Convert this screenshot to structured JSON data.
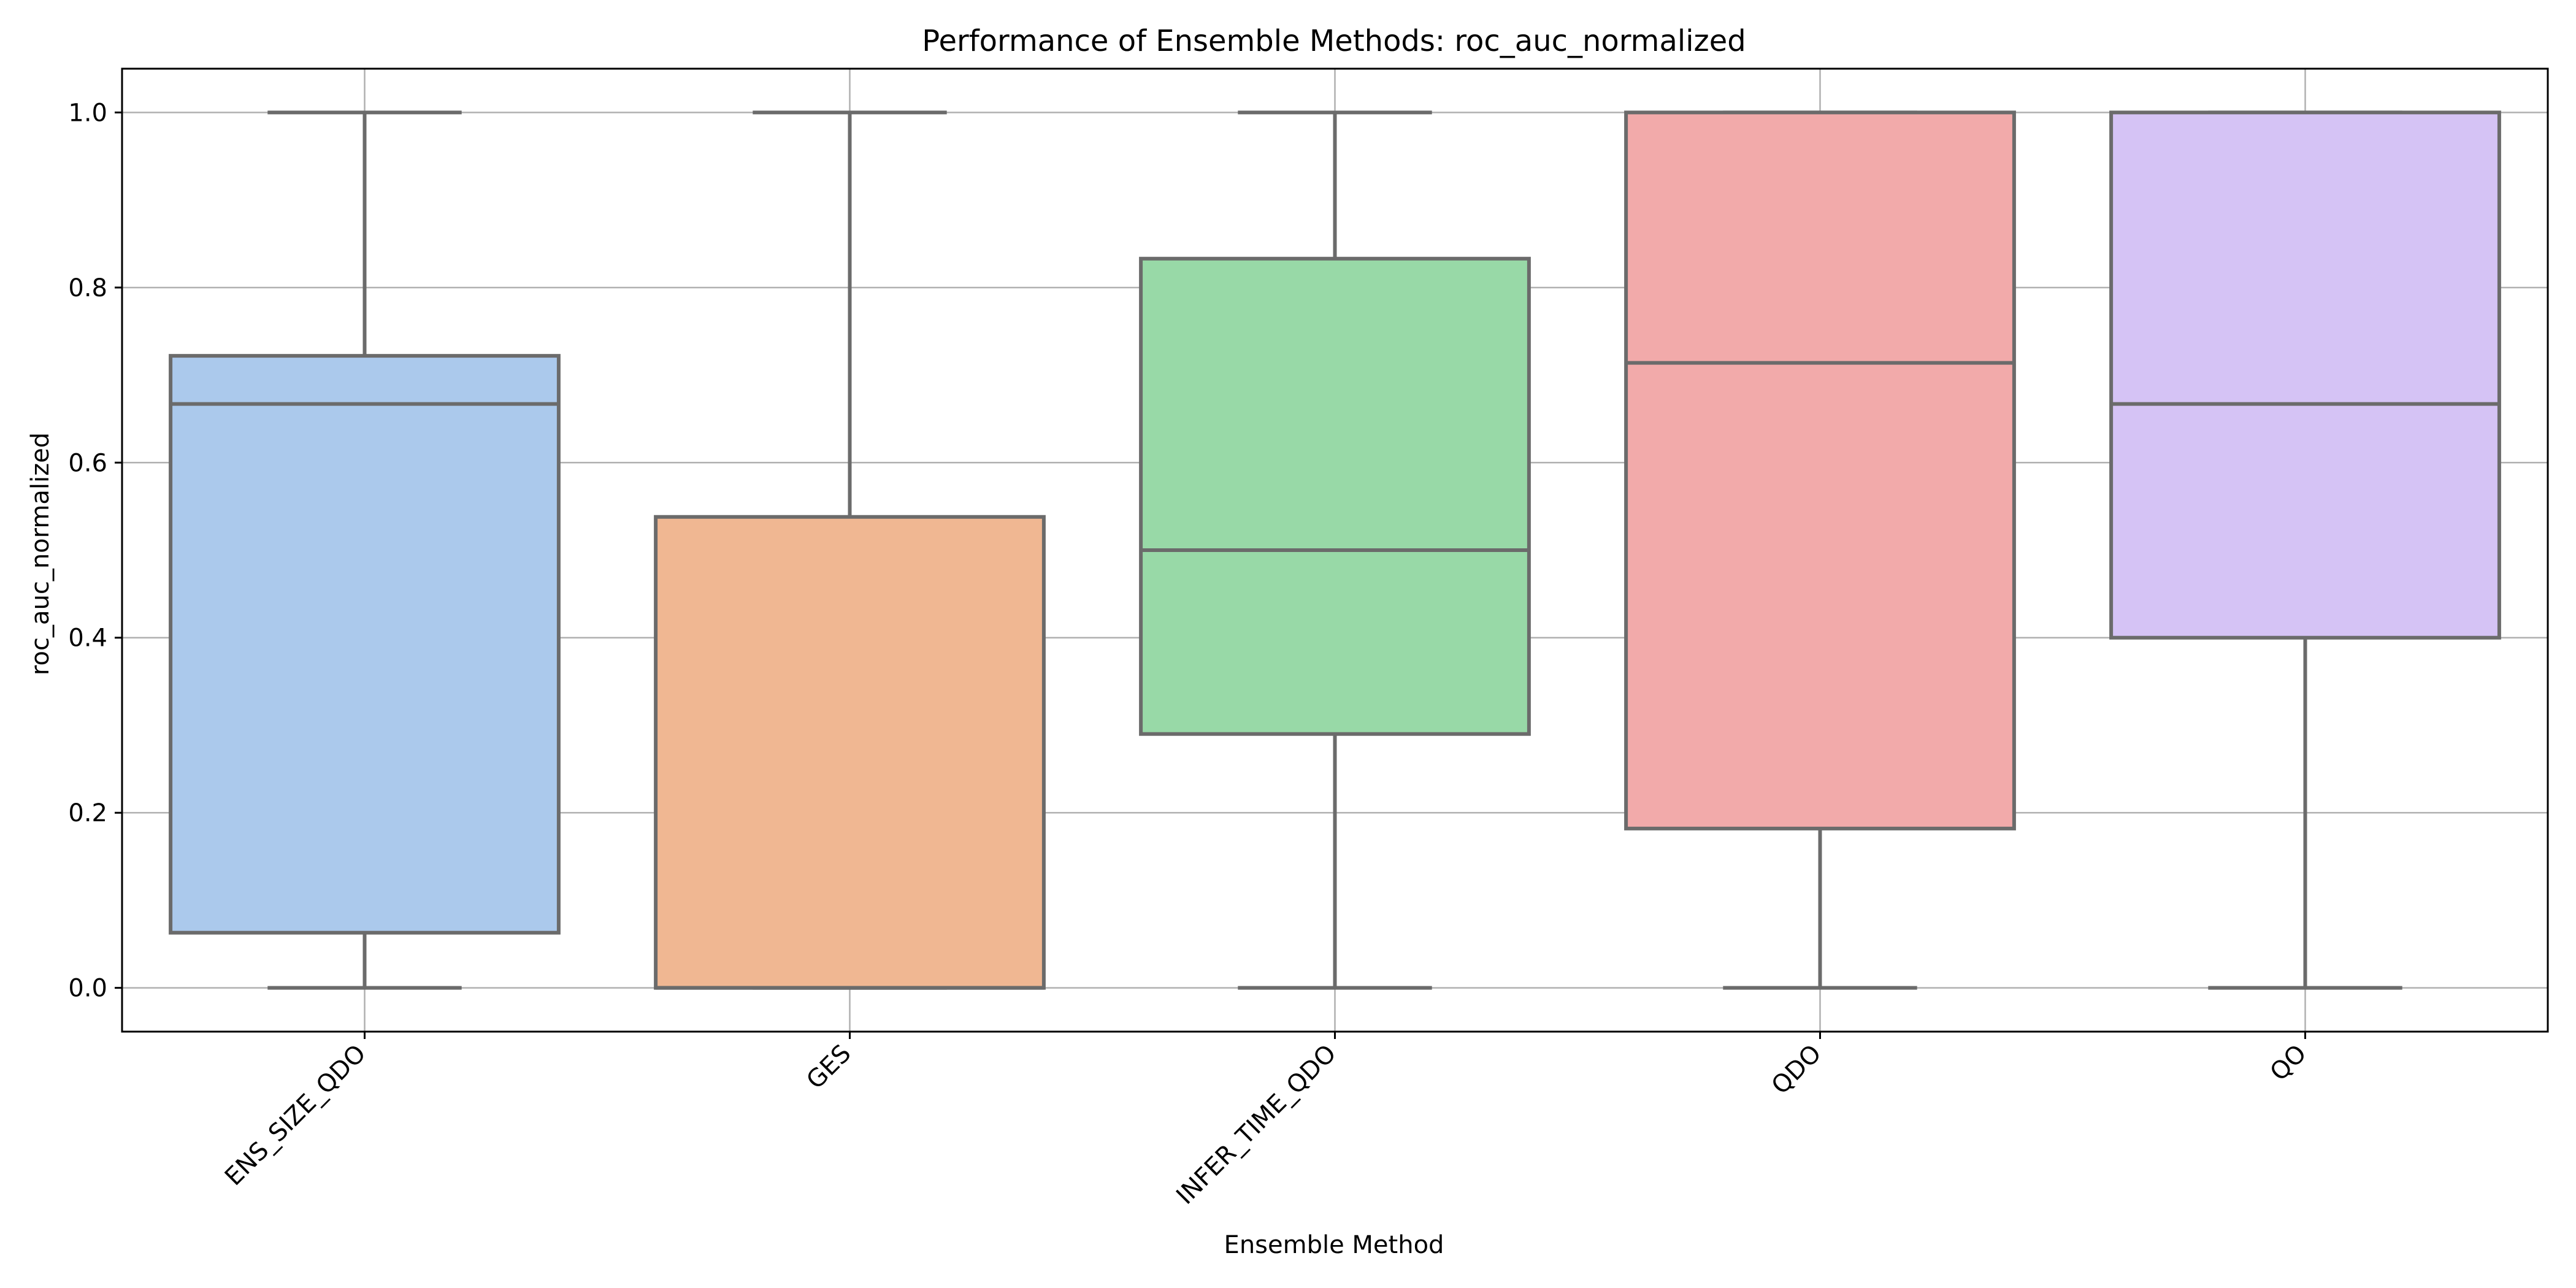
{
  "chart_data": {
    "type": "box",
    "title": "Performance of Ensemble Methods: roc_auc_normalized",
    "xlabel": "Ensemble Method",
    "ylabel": "roc_auc_normalized",
    "ylim": [
      -0.05,
      1.05
    ],
    "yticks": [
      0.0,
      0.2,
      0.4,
      0.6,
      0.8,
      1.0
    ],
    "ytick_labels": [
      "0.0",
      "0.2",
      "0.4",
      "0.6",
      "0.8",
      "1.0"
    ],
    "grid": true,
    "categories": [
      "ENS_SIZE_QDO",
      "GES",
      "INFER_TIME_QDO",
      "QDO",
      "QO"
    ],
    "boxes": [
      {
        "category": "ENS_SIZE_QDO",
        "whisker_low": 0.0,
        "q1": 0.063,
        "median": 0.667,
        "q3": 0.722,
        "whisker_high": 1.0,
        "color": "#abc9ec"
      },
      {
        "category": "GES",
        "whisker_low": 0.0,
        "q1": 0.0,
        "median": 0.0,
        "q3": 0.538,
        "whisker_high": 1.0,
        "color": "#f0b792"
      },
      {
        "category": "INFER_TIME_QDO",
        "whisker_low": 0.0,
        "q1": 0.29,
        "median": 0.5,
        "q3": 0.833,
        "whisker_high": 1.0,
        "color": "#98d9a7"
      },
      {
        "category": "QDO",
        "whisker_low": 0.0,
        "q1": 0.182,
        "median": 0.714,
        "q3": 1.0,
        "whisker_high": 1.0,
        "color": "#f2aaaa"
      },
      {
        "category": "QO",
        "whisker_low": 0.0,
        "q1": 0.4,
        "median": 0.667,
        "q3": 1.0,
        "whisker_high": 1.0,
        "color": "#d5c3f5"
      }
    ],
    "line_color": "#6b6b6b",
    "grid_color": "#b0b0b0"
  }
}
